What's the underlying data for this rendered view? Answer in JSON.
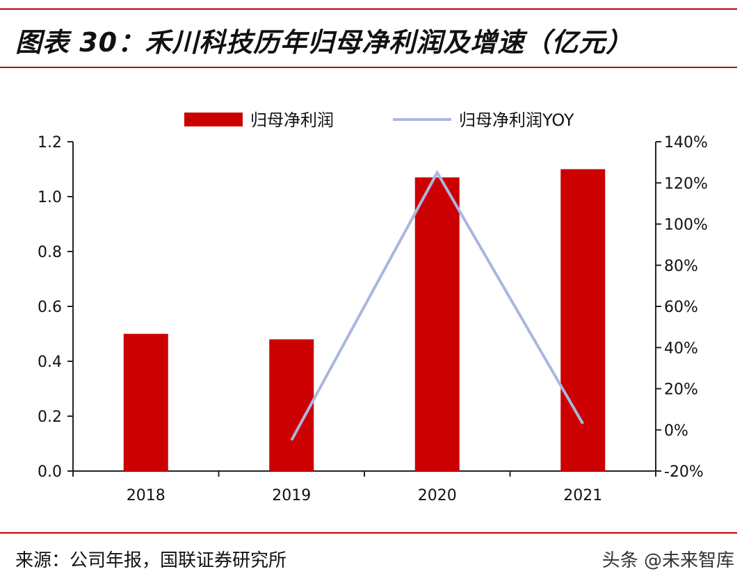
{
  "header": {
    "title": "图表 30：禾川科技历年归母净利润及增速（亿元）"
  },
  "footer": {
    "source": "来源：公司年报，国联证券研究所",
    "watermark": "头条 @未来智库"
  },
  "chart_data": {
    "type": "bar",
    "categories": [
      "2018",
      "2019",
      "2020",
      "2021"
    ],
    "series": [
      {
        "name": "归母净利润",
        "type": "bar",
        "axis": "left",
        "color": "#cc0000",
        "values": [
          0.5,
          0.48,
          1.07,
          1.1
        ]
      },
      {
        "name": "归母净利润YOY",
        "type": "line",
        "axis": "right",
        "color": "#a9b6e0",
        "values": [
          null,
          -0.05,
          1.25,
          0.03
        ]
      }
    ],
    "y_left": {
      "ylim": [
        0,
        1.2
      ],
      "ticks": [
        "0.0",
        "0.2",
        "0.4",
        "0.6",
        "0.8",
        "1.0",
        "1.2"
      ]
    },
    "y_right": {
      "ylim": [
        -0.2,
        1.4
      ],
      "ticks": [
        "-20%",
        "0%",
        "20%",
        "40%",
        "60%",
        "80%",
        "100%",
        "120%",
        "140%"
      ]
    },
    "legend": "top-center",
    "grid": false
  }
}
